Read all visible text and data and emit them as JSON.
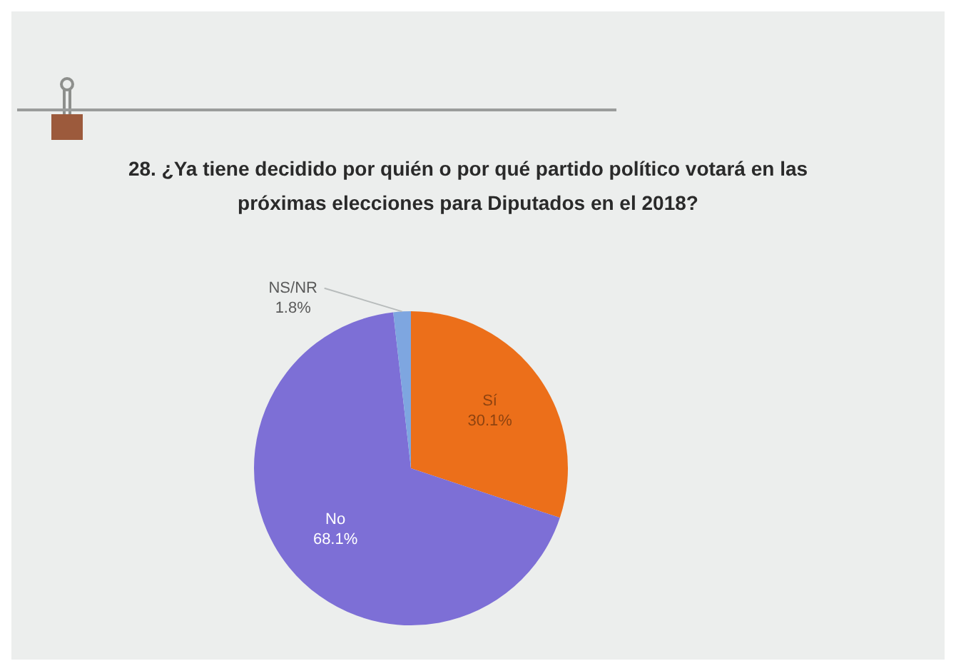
{
  "chart_data": {
    "type": "pie",
    "title": "28. ¿Ya tiene decidido por quién o por qué partido político votará en las\npróximas elecciones para Diputados en el 2018?",
    "categories": [
      "Sí",
      "No",
      "NS/NR"
    ],
    "values": [
      30.1,
      68.1,
      1.8
    ],
    "colors": [
      "#ec6f1a",
      "#7d6fd6",
      "#7ea6e0"
    ],
    "value_labels": [
      "30.1%",
      "68.1%",
      "1.8%"
    ]
  }
}
